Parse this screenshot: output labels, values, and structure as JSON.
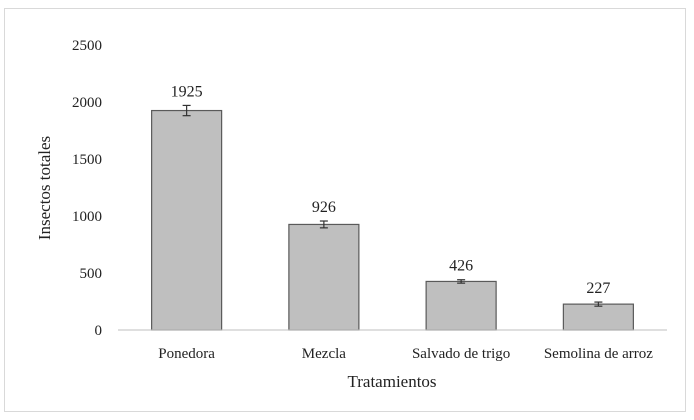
{
  "chart_data": {
    "type": "bar",
    "title": "",
    "xlabel": "Tratamientos",
    "ylabel": "Insectos totales",
    "categories": [
      "Ponedora",
      "Mezcla",
      "Salvado de trigo",
      "Semolina de arroz"
    ],
    "values": [
      1925,
      926,
      426,
      227
    ],
    "data_labels": [
      "1925",
      "926",
      "426",
      "227"
    ],
    "error": [
      45,
      30,
      15,
      18
    ],
    "ylim": [
      0,
      2500
    ],
    "yticks": [
      0,
      500,
      1000,
      1500,
      2000,
      2500
    ],
    "grid": false,
    "legend": "none",
    "colors": {
      "bar_fill": "#bfbfbf",
      "bar_stroke": "#5a5a5a",
      "axis": "#bfbfbf"
    }
  }
}
